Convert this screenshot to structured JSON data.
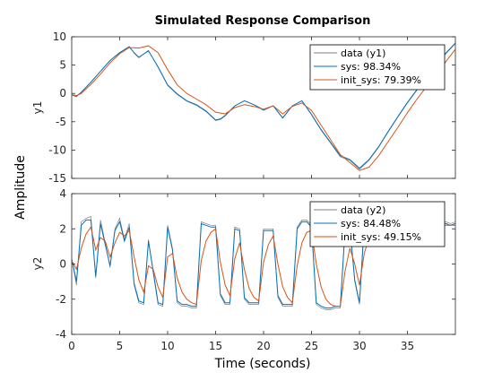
{
  "chart_data": {
    "type": "line",
    "title": "Simulated Response Comparison",
    "xlabel": "Time (seconds)",
    "ylabel": "Amplitude",
    "colors": {
      "data": "#808080",
      "sys": "#0072BD",
      "init_sys": "#D95319",
      "axes": "#262626"
    },
    "grid": false,
    "panels": [
      {
        "ylabel": "y1",
        "xlim": [
          0,
          40
        ],
        "ylim": [
          -15,
          10
        ],
        "yticks": [
          "10",
          "5",
          "0",
          "-5",
          "-10",
          "-15"
        ],
        "ytick_values": [
          10,
          5,
          0,
          -5,
          -10,
          -15
        ],
        "legend_position": "top-right",
        "series": [
          {
            "name": "data (y1)",
            "color": "#808080",
            "x": [
              0,
              0.5,
              1,
              2,
              3,
              4,
              5,
              6,
              6.5,
              7,
              8,
              9,
              10,
              11,
              12,
              13,
              14,
              15,
              15.5,
              16,
              17,
              18,
              19,
              20,
              21,
              22,
              23,
              24,
              25,
              26,
              27,
              28,
              29,
              30,
              31,
              32,
              33,
              34,
              35,
              36,
              37,
              38,
              39,
              40
            ],
            "y": [
              -0.3,
              -0.6,
              0.2,
              2.0,
              3.9,
              5.8,
              7.2,
              8.3,
              7.1,
              6.3,
              7.6,
              4.6,
              1.4,
              -0.2,
              -1.4,
              -2.1,
              -3.2,
              -4.8,
              -4.6,
              -4.0,
              -2.2,
              -1.3,
              -2.0,
              -3.0,
              -2.2,
              -4.4,
              -2.2,
              -1.3,
              -3.8,
              -6.5,
              -8.8,
              -11.2,
              -11.8,
              -13.4,
              -11.8,
              -9.5,
              -6.8,
              -4.2,
              -1.7,
              0.6,
              2.8,
              5.0,
              7.0,
              8.8
            ]
          },
          {
            "name": "sys: 98.34%",
            "color": "#0072BD",
            "x": [
              0,
              0.5,
              1,
              2,
              3,
              4,
              5,
              6,
              6.5,
              7,
              8,
              9,
              10,
              11,
              12,
              13,
              14,
              15,
              15.5,
              16,
              17,
              18,
              19,
              20,
              21,
              22,
              23,
              24,
              25,
              26,
              27,
              28,
              29,
              30,
              31,
              32,
              33,
              34,
              35,
              36,
              37,
              38,
              39,
              40
            ],
            "y": [
              -0.2,
              -0.5,
              0.2,
              2.0,
              3.9,
              5.8,
              7.2,
              8.2,
              7.2,
              6.4,
              7.5,
              4.7,
              1.5,
              -0.1,
              -1.3,
              -2.0,
              -3.1,
              -4.7,
              -4.5,
              -3.9,
              -2.2,
              -1.3,
              -2.0,
              -2.9,
              -2.2,
              -4.3,
              -2.2,
              -1.3,
              -3.7,
              -6.4,
              -8.7,
              -11.0,
              -11.7,
              -13.2,
              -11.7,
              -9.4,
              -6.7,
              -4.1,
              -1.6,
              0.7,
              2.9,
              5.1,
              7.1,
              8.9
            ]
          },
          {
            "name": "init_sys: 79.39%",
            "color": "#D95319",
            "x": [
              0,
              0.5,
              1,
              2,
              3,
              4,
              5,
              6,
              7,
              8,
              9,
              10,
              11,
              12,
              13,
              14,
              15,
              16,
              17,
              18,
              19,
              20,
              21,
              22,
              23,
              24,
              25,
              26,
              27,
              28,
              29,
              30,
              31,
              32,
              33,
              34,
              35,
              36,
              37,
              38,
              39,
              40
            ],
            "y": [
              -0.2,
              -0.4,
              0.0,
              1.6,
              3.4,
              5.4,
              7.0,
              8.1,
              8.0,
              8.4,
              7.2,
              4.2,
              1.5,
              0.0,
              -1.0,
              -2.0,
              -3.3,
              -3.6,
              -2.5,
              -2.0,
              -2.3,
              -2.8,
              -2.2,
              -3.6,
              -2.3,
              -1.7,
              -3.0,
              -5.6,
              -8.2,
              -10.8,
              -12.2,
              -13.6,
              -13.0,
              -11.0,
              -8.5,
              -6.0,
              -3.4,
              -1.0,
              1.2,
              3.4,
              5.6,
              7.8
            ]
          }
        ],
        "legend": [
          "data (y1)",
          "sys: 98.34%",
          "init_sys: 79.39%"
        ]
      },
      {
        "ylabel": "y2",
        "xlim": [
          0,
          40
        ],
        "ylim": [
          -4,
          4
        ],
        "yticks": [
          "4",
          "2",
          "0",
          "-2",
          "-4"
        ],
        "ytick_values": [
          4,
          2,
          0,
          -2,
          -4
        ],
        "xticks": [
          "0",
          "5",
          "10",
          "15",
          "20",
          "25",
          "30",
          "35"
        ],
        "xtick_values": [
          0,
          5,
          10,
          15,
          20,
          25,
          30,
          35
        ],
        "legend_position": "top-right",
        "series": [
          {
            "name": "data (y2)",
            "color": "#808080",
            "x": [
              0,
              0.5,
              1,
              1.5,
              2,
              2.5,
              3,
              3.5,
              4,
              4.5,
              5,
              5.5,
              6,
              6.5,
              7,
              7.5,
              8,
              8.5,
              9,
              9.5,
              10,
              10.5,
              11,
              11.5,
              12,
              12.5,
              13,
              13.5,
              14,
              14.5,
              15,
              15.5,
              16,
              16.5,
              17,
              17.5,
              18,
              18.5,
              19,
              19.5,
              20,
              20.5,
              21,
              21.5,
              22,
              22.5,
              23,
              23.5,
              24,
              24.5,
              25,
              25.5,
              26,
              26.5,
              27,
              27.5,
              28,
              28.5,
              29,
              29.5,
              30,
              30.5,
              31,
              31.5,
              32,
              32.5,
              33,
              33.5,
              34,
              34.5,
              35,
              35.5,
              36,
              36.5,
              37,
              37.5,
              38,
              38.5,
              39,
              39.5,
              40
            ],
            "y": [
              0.3,
              -1.2,
              2.4,
              2.6,
              2.7,
              -0.8,
              2.5,
              1.2,
              -0.2,
              2.0,
              2.6,
              1.4,
              2.3,
              -1.2,
              -2.2,
              -2.3,
              1.4,
              -0.5,
              -2.3,
              -2.4,
              2.2,
              0.9,
              -2.2,
              -2.4,
              -2.4,
              -2.5,
              -2.5,
              2.4,
              2.3,
              2.2,
              2.2,
              -1.8,
              -2.3,
              -2.3,
              2.1,
              2.0,
              -2.0,
              -2.3,
              -2.3,
              -2.3,
              2.0,
              2.0,
              2.0,
              -1.9,
              -2.4,
              -2.4,
              -2.4,
              2.1,
              2.5,
              2.5,
              2.2,
              -2.3,
              -2.5,
              -2.6,
              -2.6,
              -2.5,
              -2.5,
              2.0,
              2.2,
              -1.0,
              -2.3,
              2.3,
              2.4,
              2.2,
              2.3,
              2.2,
              2.2,
              2.2,
              2.3,
              2.3,
              2.2,
              2.2,
              2.2,
              2.2,
              2.3,
              2.2,
              2.3,
              2.4,
              2.4,
              2.3,
              2.4
            ]
          },
          {
            "name": "sys: 84.48%",
            "color": "#0072BD",
            "x": [
              0,
              0.5,
              1,
              1.5,
              2,
              2.5,
              3,
              3.5,
              4,
              4.5,
              5,
              5.5,
              6,
              6.5,
              7,
              7.5,
              8,
              8.5,
              9,
              9.5,
              10,
              10.5,
              11,
              11.5,
              12,
              12.5,
              13,
              13.5,
              14,
              14.5,
              15,
              15.5,
              16,
              16.5,
              17,
              17.5,
              18,
              18.5,
              19,
              19.5,
              20,
              20.5,
              21,
              21.5,
              22,
              22.5,
              23,
              23.5,
              24,
              24.5,
              25,
              25.5,
              26,
              26.5,
              27,
              27.5,
              28,
              28.5,
              29,
              29.5,
              30,
              30.5,
              31,
              31.5,
              32,
              32.5,
              33,
              33.5,
              34,
              34.5,
              35,
              35.5,
              36,
              36.5,
              37,
              37.5,
              38,
              38.5,
              39,
              39.5,
              40
            ],
            "y": [
              0.3,
              -1.0,
              2.2,
              2.5,
              2.5,
              -0.7,
              2.3,
              1.1,
              -0.1,
              1.9,
              2.4,
              1.3,
              2.1,
              -1.1,
              -2.1,
              -2.2,
              1.3,
              -0.4,
              -2.2,
              -2.3,
              2.1,
              0.8,
              -2.1,
              -2.3,
              -2.3,
              -2.4,
              -2.4,
              2.3,
              2.2,
              2.1,
              2.1,
              -1.7,
              -2.2,
              -2.2,
              2.0,
              1.9,
              -1.9,
              -2.2,
              -2.2,
              -2.2,
              1.9,
              1.9,
              1.9,
              -1.8,
              -2.3,
              -2.3,
              -2.3,
              2.0,
              2.4,
              2.4,
              2.1,
              -2.2,
              -2.4,
              -2.5,
              -2.5,
              -2.4,
              -2.4,
              1.9,
              2.1,
              -0.9,
              -2.2,
              2.2,
              2.3,
              2.1,
              2.2,
              2.1,
              2.1,
              2.1,
              2.2,
              2.2,
              2.1,
              2.1,
              2.1,
              2.1,
              2.2,
              2.1,
              2.2,
              2.3,
              2.3,
              2.2,
              2.3
            ]
          },
          {
            "name": "init_sys: 49.15%",
            "color": "#D95319",
            "x": [
              0,
              0.5,
              1,
              1.5,
              2,
              2.5,
              3,
              3.5,
              4,
              4.5,
              5,
              5.5,
              6,
              6.5,
              7,
              7.5,
              8,
              8.5,
              9,
              9.5,
              10,
              10.5,
              11,
              11.5,
              12,
              12.5,
              13,
              13.5,
              14,
              14.5,
              15,
              15.5,
              16,
              16.5,
              17,
              17.5,
              18,
              18.5,
              19,
              19.5,
              20,
              20.5,
              21,
              21.5,
              22,
              22.5,
              23,
              23.5,
              24,
              24.5,
              25,
              25.5,
              26,
              26.5,
              27,
              27.5,
              28,
              28.5,
              29,
              29.5,
              30,
              30.5,
              31,
              31.5,
              32,
              32.5,
              33,
              33.5,
              34,
              34.5,
              35,
              35.5,
              36,
              36.5,
              37,
              37.5,
              38,
              38.5,
              39,
              39.5,
              40
            ],
            "y": [
              0.2,
              -0.3,
              0.9,
              1.7,
              2.1,
              0.8,
              1.5,
              1.3,
              0.4,
              1.2,
              1.8,
              1.6,
              1.9,
              0.4,
              -0.9,
              -1.6,
              -0.1,
              -0.3,
              -1.3,
              -1.9,
              0.4,
              0.6,
              -0.8,
              -1.6,
              -2.0,
              -2.2,
              -2.3,
              0.2,
              1.3,
              1.8,
              2.0,
              0.1,
              -1.2,
              -1.8,
              0.3,
              1.2,
              -0.3,
              -1.4,
              -1.9,
              -2.1,
              0.1,
              1.1,
              1.6,
              0.0,
              -1.3,
              -1.9,
              -2.2,
              -0.1,
              1.2,
              1.8,
              1.9,
              0.0,
              -1.3,
              -2.0,
              -2.3,
              -2.4,
              -2.4,
              -0.4,
              0.9,
              0.0,
              -1.2,
              0.6,
              1.5,
              1.9,
              2.1,
              2.1,
              2.1,
              2.1,
              2.1,
              2.1,
              2.1,
              2.1,
              2.1,
              2.1,
              2.1,
              2.1,
              2.1,
              2.2,
              2.2,
              2.2,
              2.2
            ]
          }
        ],
        "legend": [
          "data (y2)",
          "sys: 84.48%",
          "init_sys: 49.15%"
        ]
      }
    ]
  }
}
